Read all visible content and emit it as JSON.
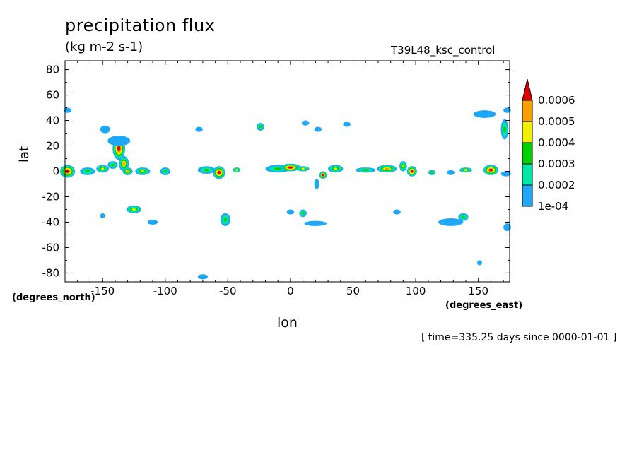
{
  "chart_data": {
    "type": "heatmap",
    "title": "precipitation flux",
    "units": "(kg m-2 s-1)",
    "run": "T39L48_ksc_control",
    "xlabel": "lon",
    "ylabel": "lat",
    "x_unit_label": "(degrees_east)",
    "y_unit_label": "(degrees_north)",
    "xlim": [
      -180,
      175
    ],
    "ylim": [
      -87,
      87
    ],
    "x_ticks": [
      "-150",
      "-100",
      "-50",
      "0",
      "50",
      "100",
      "150"
    ],
    "x_tick_values": [
      -150,
      -100,
      -50,
      0,
      50,
      100,
      150
    ],
    "y_ticks": [
      "80",
      "60",
      "40",
      "20",
      "0",
      "-20",
      "-40",
      "-60",
      "-80"
    ],
    "y_tick_values": [
      80,
      60,
      40,
      20,
      0,
      -20,
      -40,
      -60,
      -80
    ],
    "time": "[ time=335.25 days since 0000-01-01 ]",
    "colorbar": {
      "labels": [
        "1e-04",
        "0.0002",
        "0.0003",
        "0.0004",
        "0.0005",
        "0.0006"
      ],
      "levels": [
        0.0001,
        0.0002,
        0.0003,
        0.0004,
        0.0005,
        0.0006
      ],
      "colors": [
        "#20a8f8",
        "#00e8a8",
        "#00d000",
        "#f0f000",
        "#f8a000",
        "#e00000"
      ]
    },
    "features": [
      {
        "lon": -178,
        "lat": 0,
        "peak": 0.00065,
        "rx": 6,
        "ry": 5
      },
      {
        "lon": -162,
        "lat": 0,
        "peak": 0.0003,
        "rx": 6,
        "ry": 3
      },
      {
        "lon": -150,
        "lat": 2,
        "peak": 0.0004,
        "rx": 5,
        "ry": 3
      },
      {
        "lon": -142,
        "lat": 5,
        "peak": 0.0003,
        "rx": 4,
        "ry": 3
      },
      {
        "lon": -137,
        "lat": 18,
        "peak": 0.00065,
        "rx": 5,
        "ry": 9
      },
      {
        "lon": -133,
        "lat": 6,
        "peak": 0.0005,
        "rx": 4,
        "ry": 6
      },
      {
        "lon": -130,
        "lat": 0,
        "peak": 0.0005,
        "rx": 4,
        "ry": 3
      },
      {
        "lon": -148,
        "lat": 33,
        "peak": 0.00015,
        "rx": 4,
        "ry": 3
      },
      {
        "lon": -137,
        "lat": 24,
        "peak": 0.00015,
        "rx": 9,
        "ry": 4
      },
      {
        "lon": -118,
        "lat": 0,
        "peak": 0.0004,
        "rx": 6,
        "ry": 3
      },
      {
        "lon": -100,
        "lat": 0,
        "peak": 0.0003,
        "rx": 4,
        "ry": 3
      },
      {
        "lon": -178,
        "lat": 48,
        "peak": 0.00015,
        "rx": 3,
        "ry": 2
      },
      {
        "lon": -57,
        "lat": -1,
        "peak": 0.00065,
        "rx": 5,
        "ry": 5
      },
      {
        "lon": -67,
        "lat": 1,
        "peak": 0.0003,
        "rx": 7,
        "ry": 3
      },
      {
        "lon": -43,
        "lat": 1,
        "peak": 0.0004,
        "rx": 3,
        "ry": 2
      },
      {
        "lon": -73,
        "lat": 33,
        "peak": 0.00015,
        "rx": 3,
        "ry": 2
      },
      {
        "lon": -24,
        "lat": 35,
        "peak": 0.0003,
        "rx": 3,
        "ry": 3
      },
      {
        "lon": -10,
        "lat": 2,
        "peak": 0.0003,
        "rx": 10,
        "ry": 3
      },
      {
        "lon": 0,
        "lat": 3,
        "peak": 0.00065,
        "rx": 8,
        "ry": 3
      },
      {
        "lon": 10,
        "lat": 2,
        "peak": 0.0004,
        "rx": 5,
        "ry": 2
      },
      {
        "lon": 26,
        "lat": -3,
        "peak": 0.00065,
        "rx": 3,
        "ry": 3
      },
      {
        "lon": 36,
        "lat": 2,
        "peak": 0.0004,
        "rx": 6,
        "ry": 3
      },
      {
        "lon": 21,
        "lat": -10,
        "peak": 0.00015,
        "rx": 2,
        "ry": 4
      },
      {
        "lon": 12,
        "lat": 38,
        "peak": 0.00015,
        "rx": 3,
        "ry": 2
      },
      {
        "lon": 22,
        "lat": 33,
        "peak": 0.00015,
        "rx": 3,
        "ry": 2
      },
      {
        "lon": 45,
        "lat": 37,
        "peak": 0.00015,
        "rx": 3,
        "ry": 2
      },
      {
        "lon": 60,
        "lat": 1,
        "peak": 0.0003,
        "rx": 8,
        "ry": 2
      },
      {
        "lon": 77,
        "lat": 2,
        "peak": 0.0005,
        "rx": 8,
        "ry": 3
      },
      {
        "lon": 90,
        "lat": 4,
        "peak": 0.0004,
        "rx": 3,
        "ry": 4
      },
      {
        "lon": 97,
        "lat": 0,
        "peak": 0.00065,
        "rx": 4,
        "ry": 4
      },
      {
        "lon": 113,
        "lat": -1,
        "peak": 0.0003,
        "rx": 3,
        "ry": 2
      },
      {
        "lon": 128,
        "lat": -1,
        "peak": 0.00015,
        "rx": 3,
        "ry": 2
      },
      {
        "lon": 140,
        "lat": 1,
        "peak": 0.0004,
        "rx": 5,
        "ry": 2
      },
      {
        "lon": 160,
        "lat": 1,
        "peak": 0.00065,
        "rx": 6,
        "ry": 4
      },
      {
        "lon": 171,
        "lat": 33,
        "peak": 0.0003,
        "rx": 3,
        "ry": 8
      },
      {
        "lon": 155,
        "lat": 45,
        "peak": 0.00015,
        "rx": 9,
        "ry": 3
      },
      {
        "lon": 173,
        "lat": 48,
        "peak": 0.00015,
        "rx": 3,
        "ry": 2
      },
      {
        "lon": 172,
        "lat": -2,
        "peak": 0.00015,
        "rx": 4,
        "ry": 2
      },
      {
        "lon": -70,
        "lat": -83,
        "peak": 0.00015,
        "rx": 4,
        "ry": 2
      },
      {
        "lon": -125,
        "lat": -30,
        "peak": 0.0004,
        "rx": 6,
        "ry": 3
      },
      {
        "lon": -110,
        "lat": -40,
        "peak": 0.00015,
        "rx": 4,
        "ry": 2
      },
      {
        "lon": -150,
        "lat": -35,
        "peak": 0.00015,
        "rx": 2,
        "ry": 2
      },
      {
        "lon": -52,
        "lat": -38,
        "peak": 0.0003,
        "rx": 4,
        "ry": 5
      },
      {
        "lon": 0,
        "lat": -32,
        "peak": 0.00015,
        "rx": 3,
        "ry": 2
      },
      {
        "lon": 10,
        "lat": -33,
        "peak": 0.0003,
        "rx": 3,
        "ry": 3
      },
      {
        "lon": 20,
        "lat": -41,
        "peak": 0.00015,
        "rx": 9,
        "ry": 2
      },
      {
        "lon": 85,
        "lat": -32,
        "peak": 0.00015,
        "rx": 3,
        "ry": 2
      },
      {
        "lon": 128,
        "lat": -40,
        "peak": 0.00015,
        "rx": 10,
        "ry": 3
      },
      {
        "lon": 138,
        "lat": -36,
        "peak": 0.0003,
        "rx": 4,
        "ry": 3
      },
      {
        "lon": 173,
        "lat": -44,
        "peak": 0.00015,
        "rx": 3,
        "ry": 3
      },
      {
        "lon": 151,
        "lat": -72,
        "peak": 0.00015,
        "rx": 2,
        "ry": 2
      }
    ]
  }
}
